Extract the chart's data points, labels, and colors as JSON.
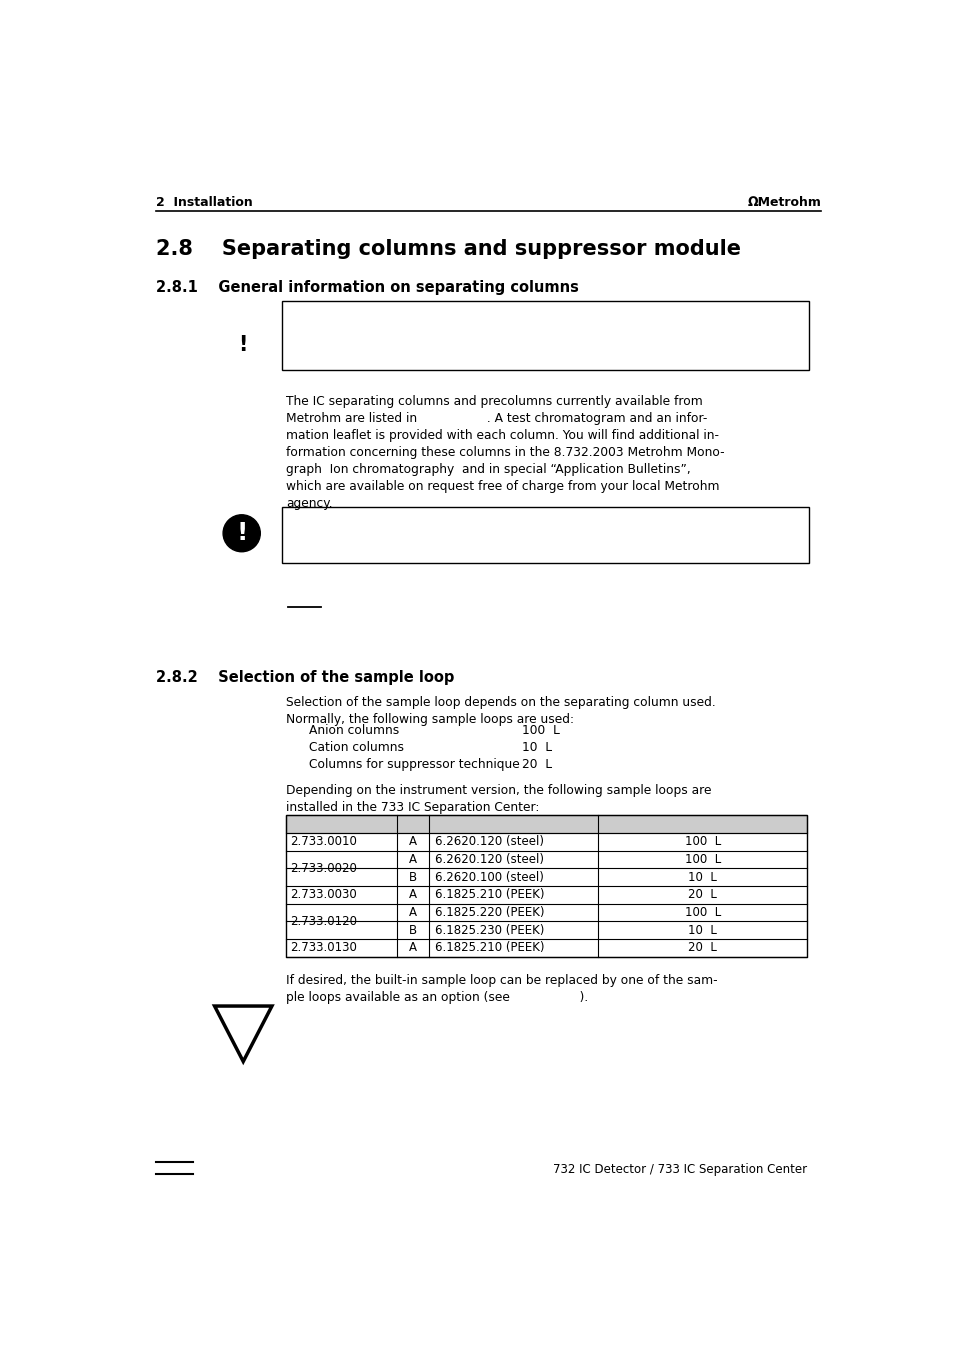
{
  "page_bg": "#ffffff",
  "header_text_left": "2  Installation",
  "header_text_right": "ΩMetrohm",
  "section_title": "2.8    Separating columns and suppressor module",
  "subsection_1": "2.8.1    General information on separating columns",
  "subsection_2": "2.8.2    Selection of the sample loop",
  "body_text_1": "The IC separating columns and precolumns currently available from\nMetrohm are listed in                  . A test chromatogram and an infor-\nmation leaflet is provided with each column. You will find additional in-\nformation concerning these columns in the 8.732.2003 Metrohm Mono-\ngraph  Ion chromatography  and in special “Application Bulletins”,\nwhich are available on request free of charge from your local Metrohm\nagency.",
  "body_text_2": "Selection of the sample loop depends on the separating column used.\nNormally, the following sample loops are used:",
  "anion_label": "Anion columns",
  "anion_value": "100  L",
  "cation_label": "Cation columns",
  "cation_value": "10  L",
  "suppressor_label": "Columns for suppressor technique",
  "suppressor_value": "20  L",
  "body_text_3": "Depending on the instrument version, the following sample loops are\ninstalled in the 733 IC Separation Center:",
  "footer_text": "If desired, the built-in sample loop can be replaced by one of the sam-\nple loops available as an option (see                  ).",
  "page_footer_right": "732 IC Detector / 733 IC Separation Center",
  "table_rows": [
    {
      "order": "2.733.0010",
      "ch": "A",
      "loop": "6.2620.120 (steel)",
      "vol": "100  L",
      "span": 1
    },
    {
      "order": "2.733.0020",
      "ch": "A",
      "loop": "6.2620.120 (steel)",
      "vol": "100  L",
      "span": 2
    },
    {
      "order": "",
      "ch": "B",
      "loop": "6.2620.100 (steel)",
      "vol": "10  L",
      "span": 2
    },
    {
      "order": "2.733.0030",
      "ch": "A",
      "loop": "6.1825.210 (PEEK)",
      "vol": "20  L",
      "span": 1
    },
    {
      "order": "2.733.0120",
      "ch": "A",
      "loop": "6.1825.220 (PEEK)",
      "vol": "100  L",
      "span": 2
    },
    {
      "order": "",
      "ch": "B",
      "loop": "6.1825.230 (PEEK)",
      "vol": "10  L",
      "span": 2
    },
    {
      "order": "2.733.0130",
      "ch": "A",
      "loop": "6.1825.210 (PEEK)",
      "vol": "20  L",
      "span": 1
    }
  ]
}
